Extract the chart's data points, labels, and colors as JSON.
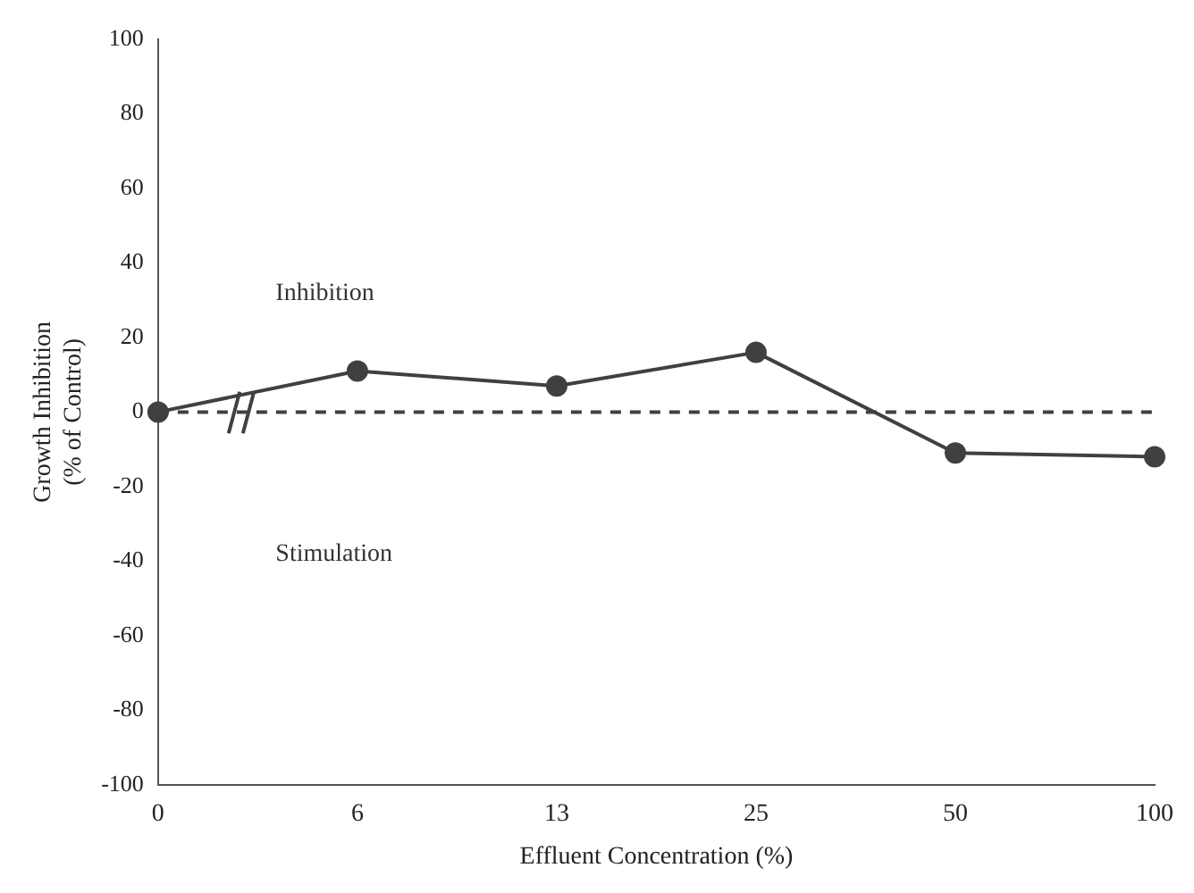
{
  "chart_data": {
    "type": "line",
    "xlabel": "Effluent Concentration (%)",
    "ylabel": "Growth Inhibition\n(% of Control)",
    "categories": [
      "0",
      "6",
      "13",
      "25",
      "50",
      "100"
    ],
    "series": [
      {
        "color": "#404040",
        "values": [
          0,
          11,
          7,
          16,
          -11,
          -12
        ]
      }
    ],
    "ylim": [
      -100,
      100
    ],
    "yticks": [
      -100,
      -80,
      -60,
      -40,
      -20,
      0,
      20,
      40,
      60,
      80,
      100
    ],
    "grid": false,
    "legend": false,
    "marker": "circle",
    "line_style": "solid",
    "ref_lines": [
      {
        "axis": "y",
        "value": 0,
        "color": "#404040",
        "line_style": "dashed"
      }
    ],
    "annotations": [
      "Inhibition",
      "Stimulation"
    ]
  }
}
